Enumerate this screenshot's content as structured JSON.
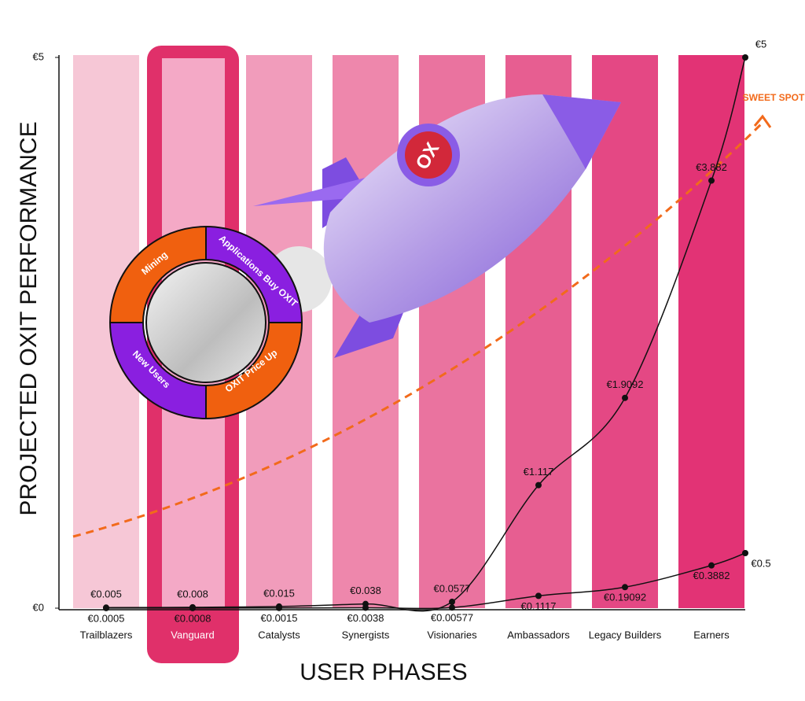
{
  "chart_data": {
    "type": "line",
    "x_title": "USER PHASES",
    "y_title": "PROJECTED OXIT PERFORMANCE",
    "categories": [
      "Trailblazers",
      "Vanguard",
      "Catalysts",
      "Synergists",
      "Visionaries",
      "Ambassadors",
      "Legacy Builders",
      "Earners",
      null
    ],
    "series": [
      {
        "color": "#111111",
        "values": [
          0.005,
          0.008,
          0.015,
          0.038,
          0.0577,
          1.117,
          1.9092,
          3.882,
          5
        ],
        "value_labels": [
          "€0.005",
          "€0.008",
          "€0.015",
          "€0.038",
          "€0.0577",
          "€1.117",
          "€1.9092",
          "€3.882",
          "€5"
        ]
      },
      {
        "color": "#111111",
        "values": [
          0.0005,
          0.0008,
          0.0015,
          0.0038,
          0.00577,
          0.1117,
          0.19092,
          0.3882,
          0.5
        ],
        "value_labels": [
          "€0.0005",
          "€0.0008",
          "€0.0015",
          "€0.0038",
          "€0.00577",
          "€0.1117",
          "€0.19092",
          "€0.3882",
          "€0.5"
        ]
      }
    ],
    "ylim": [
      0,
      5
    ],
    "yticks": [
      {
        "value": 0,
        "label": "€0"
      },
      {
        "value": 5,
        "label": "€5"
      }
    ],
    "annotations": {
      "sweet_spot": "SWEET SPOT",
      "cycle": [
        "Mining",
        "Applications Buy OXIT",
        "OXIT Price Up",
        "New Users"
      ],
      "rocket": "OX"
    }
  }
}
